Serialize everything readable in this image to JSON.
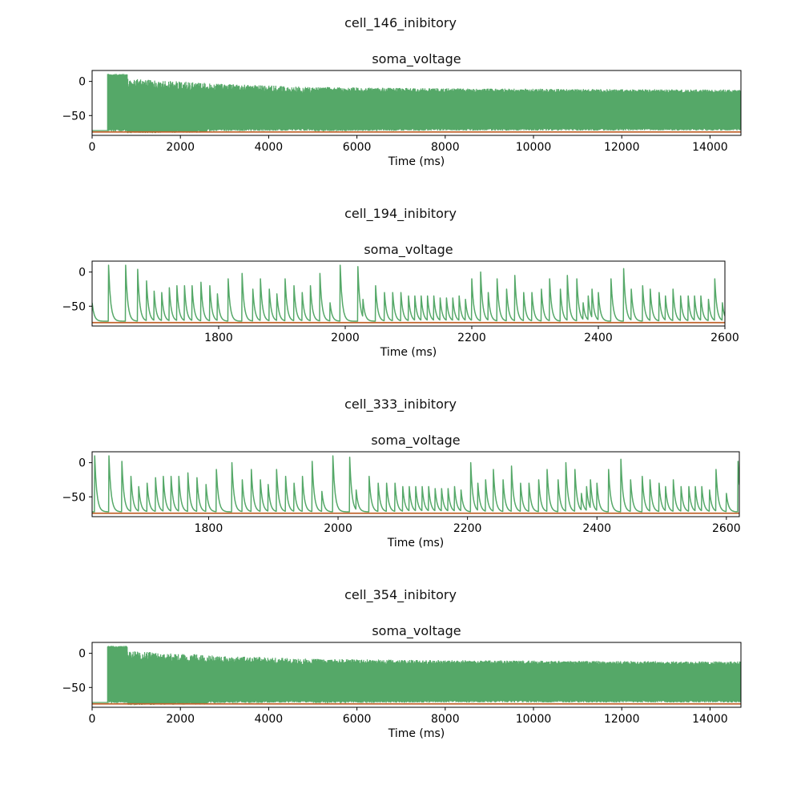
{
  "chart_data": [
    {
      "type": "line",
      "suptitle": "cell_146_inibitory",
      "title": "soma_voltage",
      "xlabel": "Time (ms)",
      "ylabel": "",
      "xlim": [
        0,
        14700
      ],
      "ylim": [
        -79,
        16
      ],
      "xticks": [
        0,
        2000,
        4000,
        6000,
        8000,
        10000,
        12000,
        14000
      ],
      "yticks": [
        0,
        -50
      ],
      "grid": false,
      "series": [
        {
          "color": "#55a868",
          "render": "dense",
          "onset": 350,
          "rest": -72,
          "segments": [
            {
              "x": [
                350,
                800
              ],
              "peak": [
                11,
                11
              ],
              "trough": [
                -70,
                -70
              ],
              "jitter": 2
            },
            {
              "x": [
                800,
                2600
              ],
              "peak": [
                4,
                -2
              ],
              "trough": [
                -73,
                -72
              ],
              "jitter": 12
            },
            {
              "x": [
                2600,
                5000
              ],
              "peak": [
                -3,
                -8
              ],
              "trough": [
                -70,
                -69
              ],
              "jitter": 9
            },
            {
              "x": [
                5000,
                8000
              ],
              "peak": [
                -8,
                -10
              ],
              "trough": [
                -70,
                -69
              ],
              "jitter": 6
            },
            {
              "x": [
                8000,
                14700
              ],
              "peak": [
                -10,
                -12
              ],
              "trough": [
                -69,
                -69
              ],
              "jitter": 5
            }
          ]
        },
        {
          "color": "#c0622a",
          "render": "hline",
          "y": -74
        }
      ]
    },
    {
      "type": "line",
      "suptitle": "cell_194_inibitory",
      "title": "soma_voltage",
      "xlabel": "Time (ms)",
      "ylabel": "",
      "xlim": [
        1600,
        2600
      ],
      "ylim": [
        -79,
        16
      ],
      "xticks": [
        1800,
        2000,
        2200,
        2400,
        2600
      ],
      "yticks": [
        0,
        -50
      ],
      "grid": false,
      "series": [
        {
          "color": "#55a868",
          "render": "spikes",
          "rest": -72,
          "start": -45,
          "spikes": [
            [
              1626,
              10
            ],
            [
              1653,
              10
            ],
            [
              1672,
              4
            ],
            [
              1686,
              -13
            ],
            [
              1698,
              -28
            ],
            [
              1710,
              -30
            ],
            [
              1722,
              -23
            ],
            [
              1734,
              -20
            ],
            [
              1746,
              -20
            ],
            [
              1758,
              -20
            ],
            [
              1772,
              -15
            ],
            [
              1786,
              -20
            ],
            [
              1798,
              -32
            ],
            [
              1815,
              -10
            ],
            [
              1837,
              -2
            ],
            [
              1854,
              -25
            ],
            [
              1866,
              -10
            ],
            [
              1880,
              -25
            ],
            [
              1892,
              -32
            ],
            [
              1905,
              -10
            ],
            [
              1919,
              -20
            ],
            [
              1932,
              -30
            ],
            [
              1945,
              -20
            ],
            [
              1960,
              -2
            ],
            [
              1976,
              -45
            ],
            [
              1992,
              10
            ],
            [
              2020,
              8
            ],
            [
              2028,
              -40
            ],
            [
              2048,
              -20
            ],
            [
              2062,
              -30
            ],
            [
              2075,
              -30
            ],
            [
              2088,
              -30
            ],
            [
              2100,
              -35
            ],
            [
              2110,
              -35
            ],
            [
              2120,
              -35
            ],
            [
              2130,
              -35
            ],
            [
              2140,
              -35
            ],
            [
              2150,
              -38
            ],
            [
              2160,
              -38
            ],
            [
              2170,
              -38
            ],
            [
              2180,
              -35
            ],
            [
              2190,
              -40
            ],
            [
              2200,
              -10
            ],
            [
              2214,
              0
            ],
            [
              2226,
              -30
            ],
            [
              2240,
              -10
            ],
            [
              2255,
              -25
            ],
            [
              2268,
              -5
            ],
            [
              2282,
              -30
            ],
            [
              2295,
              -30
            ],
            [
              2310,
              -25
            ],
            [
              2323,
              -10
            ],
            [
              2340,
              -25
            ],
            [
              2351,
              -5
            ],
            [
              2366,
              -10
            ],
            [
              2376,
              -45
            ],
            [
              2384,
              -35
            ],
            [
              2390,
              -25
            ],
            [
              2400,
              -30
            ],
            [
              2420,
              -10
            ],
            [
              2440,
              5
            ],
            [
              2452,
              -25
            ],
            [
              2470,
              -20
            ],
            [
              2482,
              -25
            ],
            [
              2496,
              -30
            ],
            [
              2506,
              -35
            ],
            [
              2518,
              -25
            ],
            [
              2530,
              -35
            ],
            [
              2542,
              -35
            ],
            [
              2552,
              -35
            ],
            [
              2562,
              -35
            ],
            [
              2574,
              -40
            ],
            [
              2584,
              -10
            ],
            [
              2596,
              -45
            ]
          ]
        },
        {
          "color": "#c0622a",
          "render": "hline",
          "y": -74
        }
      ]
    },
    {
      "type": "line",
      "suptitle": "cell_333_inibitory",
      "title": "soma_voltage",
      "xlabel": "Time (ms)",
      "ylabel": "",
      "xlim": [
        1620,
        2620
      ],
      "ylim": [
        -79,
        16
      ],
      "xticks": [
        1800,
        2000,
        2200,
        2400,
        2600
      ],
      "yticks": [
        0,
        -50
      ],
      "grid": false,
      "series": [
        {
          "color": "#55a868",
          "render": "spikes",
          "rest": -72,
          "start": -72,
          "spikes": [
            [
              1624,
              10
            ],
            [
              1646,
              10
            ],
            [
              1666,
              2
            ],
            [
              1680,
              -20
            ],
            [
              1692,
              -35
            ],
            [
              1705,
              -30
            ],
            [
              1718,
              -22
            ],
            [
              1730,
              -20
            ],
            [
              1742,
              -20
            ],
            [
              1754,
              -20
            ],
            [
              1768,
              -15
            ],
            [
              1782,
              -22
            ],
            [
              1796,
              -32
            ],
            [
              1812,
              -10
            ],
            [
              1836,
              0
            ],
            [
              1852,
              -25
            ],
            [
              1866,
              -10
            ],
            [
              1880,
              -25
            ],
            [
              1892,
              -32
            ],
            [
              1905,
              -10
            ],
            [
              1919,
              -20
            ],
            [
              1932,
              -30
            ],
            [
              1945,
              -20
            ],
            [
              1960,
              2
            ],
            [
              1975,
              -42
            ],
            [
              1992,
              10
            ],
            [
              2018,
              8
            ],
            [
              2028,
              -40
            ],
            [
              2048,
              -20
            ],
            [
              2062,
              -30
            ],
            [
              2075,
              -30
            ],
            [
              2088,
              -30
            ],
            [
              2100,
              -35
            ],
            [
              2110,
              -35
            ],
            [
              2120,
              -35
            ],
            [
              2130,
              -35
            ],
            [
              2140,
              -35
            ],
            [
              2150,
              -38
            ],
            [
              2160,
              -38
            ],
            [
              2170,
              -38
            ],
            [
              2180,
              -35
            ],
            [
              2190,
              -40
            ],
            [
              2205,
              0
            ],
            [
              2216,
              -30
            ],
            [
              2228,
              -25
            ],
            [
              2240,
              -10
            ],
            [
              2255,
              -25
            ],
            [
              2268,
              -5
            ],
            [
              2282,
              -30
            ],
            [
              2295,
              -30
            ],
            [
              2310,
              -25
            ],
            [
              2323,
              -10
            ],
            [
              2340,
              -25
            ],
            [
              2352,
              0
            ],
            [
              2366,
              -10
            ],
            [
              2376,
              -45
            ],
            [
              2384,
              -35
            ],
            [
              2390,
              -25
            ],
            [
              2400,
              -30
            ],
            [
              2418,
              -10
            ],
            [
              2437,
              5
            ],
            [
              2452,
              -25
            ],
            [
              2470,
              -20
            ],
            [
              2482,
              -25
            ],
            [
              2496,
              -30
            ],
            [
              2506,
              -35
            ],
            [
              2518,
              -25
            ],
            [
              2530,
              -35
            ],
            [
              2542,
              -35
            ],
            [
              2552,
              -35
            ],
            [
              2562,
              -35
            ],
            [
              2574,
              -40
            ],
            [
              2584,
              -10
            ],
            [
              2600,
              -45
            ],
            [
              2618,
              2
            ]
          ]
        },
        {
          "color": "#c0622a",
          "render": "hline",
          "y": -74
        }
      ]
    },
    {
      "type": "line",
      "suptitle": "cell_354_inibitory",
      "title": "soma_voltage",
      "xlabel": "Time (ms)",
      "ylabel": "",
      "xlim": [
        0,
        14700
      ],
      "ylim": [
        -79,
        16
      ],
      "xticks": [
        0,
        2000,
        4000,
        6000,
        8000,
        10000,
        12000,
        14000
      ],
      "yticks": [
        0,
        -50
      ],
      "grid": false,
      "series": [
        {
          "color": "#55a868",
          "render": "dense",
          "onset": 350,
          "rest": -72,
          "segments": [
            {
              "x": [
                350,
                800
              ],
              "peak": [
                11,
                11
              ],
              "trough": [
                -70,
                -70
              ],
              "jitter": 2
            },
            {
              "x": [
                800,
                2600
              ],
              "peak": [
                4,
                -2
              ],
              "trough": [
                -73,
                -72
              ],
              "jitter": 12
            },
            {
              "x": [
                2600,
                5000
              ],
              "peak": [
                -3,
                -8
              ],
              "trough": [
                -70,
                -69
              ],
              "jitter": 9
            },
            {
              "x": [
                5000,
                8000
              ],
              "peak": [
                -8,
                -10
              ],
              "trough": [
                -70,
                -69
              ],
              "jitter": 6
            },
            {
              "x": [
                8000,
                14700
              ],
              "peak": [
                -10,
                -12
              ],
              "trough": [
                -69,
                -69
              ],
              "jitter": 5
            }
          ]
        },
        {
          "color": "#c0622a",
          "render": "hline",
          "y": -74
        }
      ]
    }
  ]
}
